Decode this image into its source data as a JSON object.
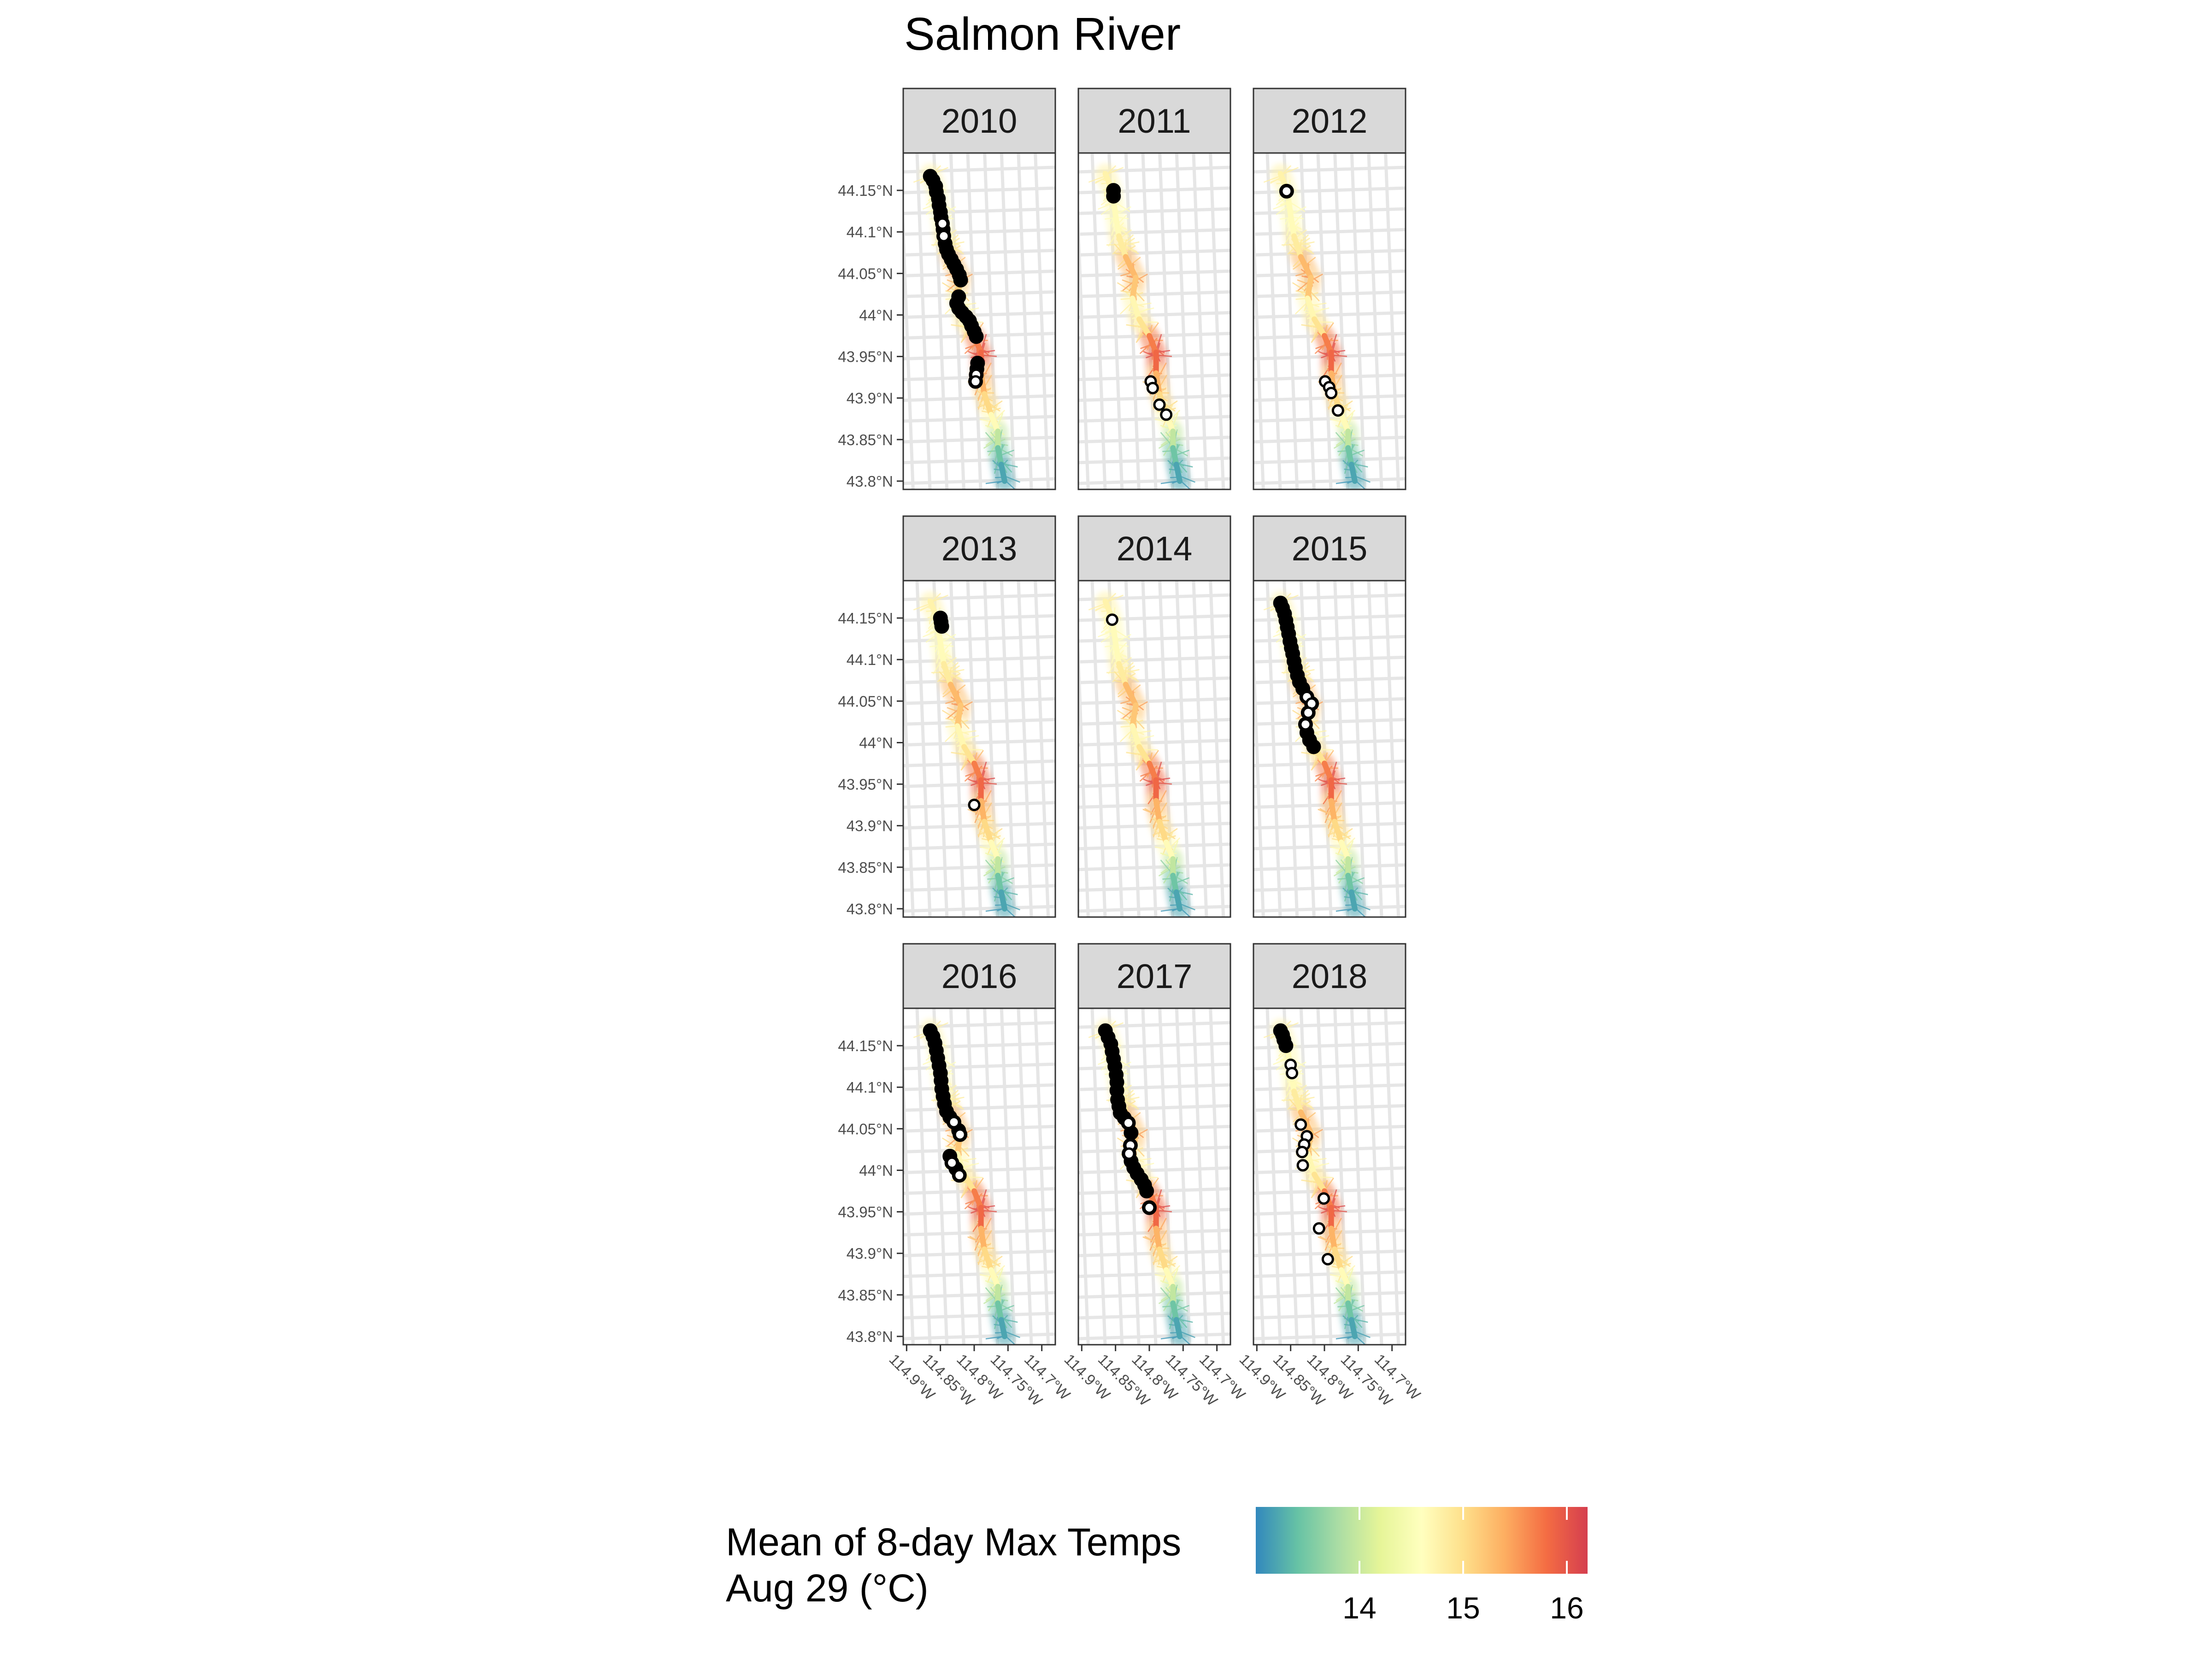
{
  "title": "Salmon River",
  "legend": {
    "title_line1": "Mean of 8-day Max Temps",
    "title_line2": "Aug 29 (°C)",
    "colors": [
      "#3288bd",
      "#66c2a5",
      "#abdda4",
      "#e6f598",
      "#ffffbf",
      "#fee08b",
      "#fdae61",
      "#f46d43",
      "#d53e4f"
    ],
    "range": [
      13.0,
      16.2
    ],
    "ticks": [
      {
        "value": 14,
        "label": "14"
      },
      {
        "value": 15,
        "label": "15"
      },
      {
        "value": 16,
        "label": "16"
      }
    ]
  },
  "chart_data": {
    "type": "scatter",
    "facets": [
      "2010",
      "2011",
      "2012",
      "2013",
      "2014",
      "2015",
      "2016",
      "2017",
      "2018"
    ],
    "x_ticks": [
      {
        "value": -114.9,
        "label": "114.9°W"
      },
      {
        "value": -114.85,
        "label": "114.85°W"
      },
      {
        "value": -114.8,
        "label": "114.8°W"
      },
      {
        "value": -114.75,
        "label": "114.75°W"
      },
      {
        "value": -114.7,
        "label": "114.7°W"
      }
    ],
    "y_ticks": [
      {
        "value": 44.15,
        "label": "44.15°N"
      },
      {
        "value": 44.1,
        "label": "44.1°N"
      },
      {
        "value": 44.05,
        "label": "44.05°N"
      },
      {
        "value": 44.0,
        "label": "44°N"
      },
      {
        "value": 43.95,
        "label": "43.95°N"
      },
      {
        "value": 43.9,
        "label": "43.9°N"
      },
      {
        "value": 43.85,
        "label": "43.85°N"
      },
      {
        "value": 43.8,
        "label": "43.8°N"
      }
    ],
    "xlim": [
      -114.905,
      -114.68
    ],
    "ylim": [
      43.79,
      44.195
    ],
    "river_course": [
      {
        "lon": -114.865,
        "lat": 44.17,
        "temp": 14.8
      },
      {
        "lon": -114.855,
        "lat": 44.15,
        "temp": 14.7
      },
      {
        "lon": -114.85,
        "lat": 44.12,
        "temp": 14.6
      },
      {
        "lon": -114.845,
        "lat": 44.095,
        "temp": 14.7
      },
      {
        "lon": -114.835,
        "lat": 44.07,
        "temp": 15.0
      },
      {
        "lon": -114.82,
        "lat": 44.045,
        "temp": 15.6
      },
      {
        "lon": -114.825,
        "lat": 44.02,
        "temp": 14.8
      },
      {
        "lon": -114.815,
        "lat": 43.995,
        "temp": 14.6
      },
      {
        "lon": -114.8,
        "lat": 43.975,
        "temp": 15.3
      },
      {
        "lon": -114.79,
        "lat": 43.955,
        "temp": 16.1
      },
      {
        "lon": -114.79,
        "lat": 43.93,
        "temp": 15.6
      },
      {
        "lon": -114.785,
        "lat": 43.905,
        "temp": 15.1
      },
      {
        "lon": -114.775,
        "lat": 43.88,
        "temp": 15.0
      },
      {
        "lon": -114.765,
        "lat": 43.86,
        "temp": 14.3
      },
      {
        "lon": -114.765,
        "lat": 43.84,
        "temp": 13.6
      },
      {
        "lon": -114.76,
        "lat": 43.82,
        "temp": 13.3
      },
      {
        "lon": -114.755,
        "lat": 43.8,
        "temp": 13.1
      }
    ],
    "series": [
      {
        "facet": "2010",
        "points": [
          [
            -114.865,
            44.167
          ],
          [
            -114.861,
            44.162
          ],
          [
            -114.857,
            44.155
          ],
          [
            -114.856,
            44.148
          ],
          [
            -114.853,
            44.14
          ],
          [
            -114.852,
            44.132
          ],
          [
            -114.85,
            44.124
          ],
          [
            -114.849,
            44.117
          ],
          [
            -114.847,
            44.11
          ],
          [
            -114.846,
            44.103
          ],
          [
            -114.845,
            44.095
          ],
          [
            -114.843,
            44.086
          ],
          [
            -114.841,
            44.079
          ],
          [
            -114.838,
            44.073
          ],
          [
            -114.834,
            44.067
          ],
          [
            -114.83,
            44.061
          ],
          [
            -114.826,
            44.055
          ],
          [
            -114.822,
            44.048
          ],
          [
            -114.82,
            44.042
          ],
          [
            -114.823,
            44.022
          ],
          [
            -114.826,
            44.014
          ],
          [
            -114.823,
            44.008
          ],
          [
            -114.818,
            44.003
          ],
          [
            -114.812,
            43.998
          ],
          [
            -114.807,
            43.993
          ],
          [
            -114.804,
            43.987
          ],
          [
            -114.8,
            43.98
          ],
          [
            -114.797,
            43.974
          ],
          [
            -114.795,
            43.942
          ],
          [
            -114.796,
            43.935
          ],
          [
            -114.797,
            43.928
          ],
          [
            -114.798,
            43.92
          ]
        ],
        "hollow": [
          [
            -114.847,
            44.11
          ],
          [
            -114.845,
            44.095
          ],
          [
            -114.797,
            43.928
          ],
          [
            -114.798,
            43.92
          ]
        ]
      },
      {
        "facet": "2011",
        "points": [
          [
            -114.853,
            44.15
          ],
          [
            -114.853,
            44.143
          ]
        ],
        "hollow": [
          [
            -114.798,
            43.92
          ],
          [
            -114.795,
            43.912
          ],
          [
            -114.785,
            43.892
          ],
          [
            -114.775,
            43.88
          ]
        ]
      },
      {
        "facet": "2012",
        "points": [
          [
            -114.856,
            44.149
          ]
        ],
        "hollow": [
          [
            -114.856,
            44.149
          ],
          [
            -114.799,
            43.92
          ],
          [
            -114.793,
            43.913
          ],
          [
            -114.79,
            43.906
          ],
          [
            -114.78,
            43.885
          ]
        ]
      },
      {
        "facet": "2013",
        "points": [
          [
            -114.85,
            44.15
          ],
          [
            -114.849,
            44.145
          ],
          [
            -114.848,
            44.14
          ]
        ],
        "hollow": [
          [
            -114.8,
            43.925
          ]
        ]
      },
      {
        "facet": "2014",
        "points": [],
        "hollow": [
          [
            -114.855,
            44.148
          ]
        ]
      },
      {
        "facet": "2015",
        "points": [
          [
            -114.865,
            44.168
          ],
          [
            -114.862,
            44.162
          ],
          [
            -114.859,
            44.155
          ],
          [
            -114.857,
            44.147
          ],
          [
            -114.855,
            44.139
          ],
          [
            -114.853,
            44.131
          ],
          [
            -114.851,
            44.122
          ],
          [
            -114.849,
            44.114
          ],
          [
            -114.847,
            44.107
          ],
          [
            -114.845,
            44.098
          ],
          [
            -114.843,
            44.09
          ],
          [
            -114.84,
            44.081
          ],
          [
            -114.837,
            44.073
          ],
          [
            -114.832,
            44.065
          ],
          [
            -114.826,
            44.055
          ],
          [
            -114.819,
            44.047
          ],
          [
            -114.824,
            44.036
          ],
          [
            -114.828,
            44.022
          ],
          [
            -114.826,
            44.012
          ],
          [
            -114.822,
            44.003
          ],
          [
            -114.816,
            43.995
          ]
        ],
        "hollow": [
          [
            -114.826,
            44.055
          ],
          [
            -114.819,
            44.047
          ],
          [
            -114.824,
            44.036
          ],
          [
            -114.828,
            44.022
          ]
        ]
      },
      {
        "facet": "2016",
        "points": [
          [
            -114.865,
            44.168
          ],
          [
            -114.861,
            44.161
          ],
          [
            -114.858,
            44.153
          ],
          [
            -114.856,
            44.144
          ],
          [
            -114.854,
            44.135
          ],
          [
            -114.852,
            44.126
          ],
          [
            -114.85,
            44.117
          ],
          [
            -114.849,
            44.108
          ],
          [
            -114.848,
            44.098
          ],
          [
            -114.846,
            44.089
          ],
          [
            -114.844,
            44.08
          ],
          [
            -114.841,
            44.071
          ],
          [
            -114.836,
            44.064
          ],
          [
            -114.83,
            44.058
          ],
          [
            -114.823,
            44.048
          ],
          [
            -114.821,
            44.043
          ],
          [
            -114.836,
            44.017
          ],
          [
            -114.833,
            44.009
          ],
          [
            -114.827,
            44.002
          ],
          [
            -114.822,
            43.994
          ]
        ],
        "hollow": [
          [
            -114.83,
            44.058
          ],
          [
            -114.821,
            44.043
          ],
          [
            -114.833,
            44.009
          ],
          [
            -114.822,
            43.994
          ]
        ]
      },
      {
        "facet": "2017",
        "points": [
          [
            -114.865,
            44.168
          ],
          [
            -114.861,
            44.16
          ],
          [
            -114.857,
            44.152
          ],
          [
            -114.855,
            44.143
          ],
          [
            -114.853,
            44.134
          ],
          [
            -114.851,
            44.125
          ],
          [
            -114.849,
            44.115
          ],
          [
            -114.848,
            44.106
          ],
          [
            -114.848,
            44.096
          ],
          [
            -114.847,
            44.085
          ],
          [
            -114.845,
            44.077
          ],
          [
            -114.843,
            44.069
          ],
          [
            -114.837,
            44.063
          ],
          [
            -114.831,
            44.057
          ],
          [
            -114.827,
            44.045
          ],
          [
            -114.828,
            44.03
          ],
          [
            -114.83,
            44.02
          ],
          [
            -114.827,
            44.011
          ],
          [
            -114.823,
            44.003
          ],
          [
            -114.818,
            43.996
          ],
          [
            -114.812,
            43.989
          ],
          [
            -114.807,
            43.982
          ],
          [
            -114.804,
            43.975
          ],
          [
            -114.8,
            43.955
          ]
        ],
        "hollow": [
          [
            -114.831,
            44.057
          ],
          [
            -114.828,
            44.03
          ],
          [
            -114.83,
            44.02
          ],
          [
            -114.8,
            43.955
          ]
        ]
      },
      {
        "facet": "2018",
        "points": [
          [
            -114.865,
            44.168
          ],
          [
            -114.862,
            44.163
          ],
          [
            -114.86,
            44.157
          ],
          [
            -114.857,
            44.15
          ]
        ],
        "hollow": [
          [
            -114.85,
            44.127
          ],
          [
            -114.848,
            44.117
          ],
          [
            -114.835,
            44.055
          ],
          [
            -114.826,
            44.041
          ],
          [
            -114.83,
            44.031
          ],
          [
            -114.833,
            44.022
          ],
          [
            -114.832,
            44.006
          ],
          [
            -114.801,
            43.966
          ],
          [
            -114.808,
            43.93
          ],
          [
            -114.795,
            43.893
          ]
        ]
      }
    ]
  }
}
